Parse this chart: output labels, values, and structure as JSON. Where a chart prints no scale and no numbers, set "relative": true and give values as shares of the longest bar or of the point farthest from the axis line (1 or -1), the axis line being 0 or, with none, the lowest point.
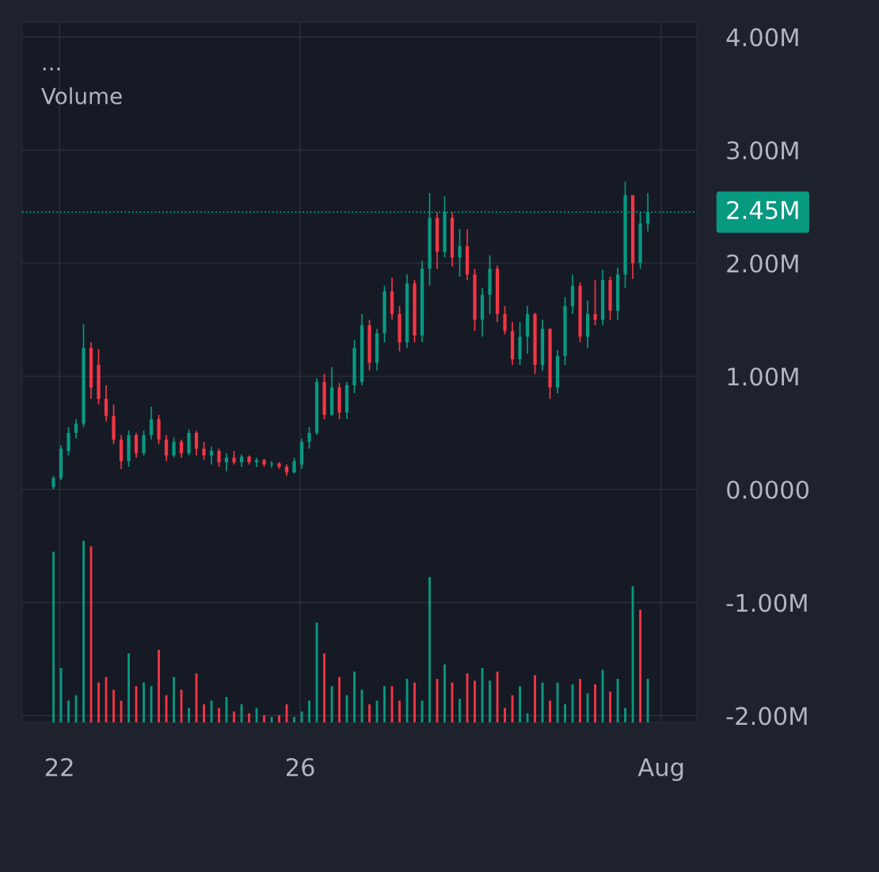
{
  "chart_data": [
    {
      "type": "candlestick",
      "annotations": [
        "...",
        "Volume"
      ],
      "x": [
        21.9,
        22.025,
        22.15,
        22.275,
        22.4,
        22.525,
        22.65,
        22.775,
        22.9,
        23.025,
        23.15,
        23.275,
        23.4,
        23.525,
        23.65,
        23.775,
        23.9,
        24.025,
        24.15,
        24.275,
        24.4,
        24.525,
        24.65,
        24.775,
        24.9,
        25.025,
        25.15,
        25.275,
        25.4,
        25.525,
        25.65,
        25.775,
        25.9,
        26.025,
        26.15,
        26.275,
        26.4,
        26.525,
        26.65,
        26.775,
        26.9,
        27.025,
        27.15,
        27.275,
        27.4,
        27.525,
        27.65,
        27.775,
        27.9,
        28.025,
        28.15,
        28.275,
        28.4,
        28.525,
        28.65,
        28.775,
        28.9,
        29.025,
        29.15,
        29.275,
        29.4,
        29.525,
        29.65,
        29.775,
        29.9,
        30.025,
        30.15,
        30.275,
        30.4,
        30.525,
        30.65,
        30.775,
        30.9,
        31.025,
        31.15,
        31.275,
        31.4,
        31.525,
        31.65,
        31.775
      ],
      "ohlc": [
        [
          0.02,
          0.12,
          0.0,
          0.1
        ],
        [
          0.1,
          0.39,
          0.08,
          0.36
        ],
        [
          0.34,
          0.55,
          0.3,
          0.5
        ],
        [
          0.5,
          0.62,
          0.45,
          0.58
        ],
        [
          0.58,
          1.46,
          0.55,
          1.25
        ],
        [
          1.25,
          1.3,
          0.8,
          0.9
        ],
        [
          1.1,
          1.24,
          0.75,
          0.8
        ],
        [
          0.8,
          0.92,
          0.6,
          0.65
        ],
        [
          0.65,
          0.75,
          0.4,
          0.44
        ],
        [
          0.44,
          0.48,
          0.18,
          0.25
        ],
        [
          0.25,
          0.52,
          0.2,
          0.48
        ],
        [
          0.48,
          0.5,
          0.28,
          0.32
        ],
        [
          0.32,
          0.52,
          0.3,
          0.48
        ],
        [
          0.48,
          0.73,
          0.44,
          0.62
        ],
        [
          0.62,
          0.66,
          0.4,
          0.44
        ],
        [
          0.44,
          0.48,
          0.25,
          0.3
        ],
        [
          0.3,
          0.46,
          0.28,
          0.42
        ],
        [
          0.42,
          0.44,
          0.28,
          0.32
        ],
        [
          0.32,
          0.53,
          0.3,
          0.5
        ],
        [
          0.5,
          0.52,
          0.3,
          0.36
        ],
        [
          0.36,
          0.42,
          0.26,
          0.3
        ],
        [
          0.3,
          0.38,
          0.22,
          0.34
        ],
        [
          0.34,
          0.36,
          0.2,
          0.24
        ],
        [
          0.24,
          0.32,
          0.16,
          0.28
        ],
        [
          0.28,
          0.34,
          0.22,
          0.24
        ],
        [
          0.24,
          0.31,
          0.2,
          0.29
        ],
        [
          0.29,
          0.3,
          0.22,
          0.24
        ],
        [
          0.24,
          0.28,
          0.2,
          0.26
        ],
        [
          0.26,
          0.27,
          0.2,
          0.22
        ],
        [
          0.22,
          0.25,
          0.19,
          0.23
        ],
        [
          0.23,
          0.24,
          0.18,
          0.2
        ],
        [
          0.2,
          0.22,
          0.12,
          0.15
        ],
        [
          0.15,
          0.28,
          0.14,
          0.25
        ],
        [
          0.22,
          0.45,
          0.18,
          0.42
        ],
        [
          0.42,
          0.55,
          0.36,
          0.5
        ],
        [
          0.5,
          0.98,
          0.48,
          0.95
        ],
        [
          0.95,
          1.02,
          0.62,
          0.66
        ],
        [
          0.66,
          1.08,
          0.65,
          0.9
        ],
        [
          0.9,
          0.94,
          0.62,
          0.68
        ],
        [
          0.68,
          0.95,
          0.62,
          0.92
        ],
        [
          0.92,
          1.32,
          0.85,
          1.25
        ],
        [
          0.95,
          1.55,
          0.92,
          1.45
        ],
        [
          1.45,
          1.5,
          1.05,
          1.12
        ],
        [
          1.12,
          1.42,
          1.05,
          1.38
        ],
        [
          1.38,
          1.8,
          1.3,
          1.75
        ],
        [
          1.75,
          1.87,
          1.5,
          1.55
        ],
        [
          1.55,
          1.62,
          1.22,
          1.3
        ],
        [
          1.3,
          1.9,
          1.25,
          1.82
        ],
        [
          1.82,
          1.85,
          1.3,
          1.36
        ],
        [
          1.36,
          2.02,
          1.3,
          1.95
        ],
        [
          1.95,
          2.62,
          1.8,
          2.4
        ],
        [
          2.4,
          2.45,
          1.95,
          2.1
        ],
        [
          2.1,
          2.59,
          2.05,
          2.45
        ],
        [
          2.4,
          2.45,
          1.97,
          2.05
        ],
        [
          2.05,
          2.3,
          1.88,
          2.15
        ],
        [
          2.15,
          2.3,
          1.85,
          1.9
        ],
        [
          1.9,
          1.95,
          1.4,
          1.5
        ],
        [
          1.5,
          1.78,
          1.35,
          1.72
        ],
        [
          1.72,
          2.07,
          1.55,
          1.95
        ],
        [
          1.95,
          1.98,
          1.48,
          1.55
        ],
        [
          1.55,
          1.62,
          1.37,
          1.4
        ],
        [
          1.4,
          1.48,
          1.1,
          1.15
        ],
        [
          1.15,
          1.48,
          1.1,
          1.35
        ],
        [
          1.35,
          1.62,
          1.2,
          1.55
        ],
        [
          1.55,
          1.56,
          1.02,
          1.1
        ],
        [
          1.1,
          1.5,
          1.05,
          1.42
        ],
        [
          1.42,
          1.42,
          0.8,
          0.9
        ],
        [
          0.9,
          1.23,
          0.85,
          1.18
        ],
        [
          1.18,
          1.7,
          1.1,
          1.62
        ],
        [
          1.62,
          1.9,
          1.55,
          1.8
        ],
        [
          1.8,
          1.83,
          1.3,
          1.35
        ],
        [
          1.35,
          1.67,
          1.25,
          1.55
        ],
        [
          1.55,
          1.85,
          1.45,
          1.5
        ],
        [
          1.5,
          1.94,
          1.45,
          1.85
        ],
        [
          1.85,
          1.88,
          1.5,
          1.58
        ],
        [
          1.58,
          1.96,
          1.5,
          1.9
        ],
        [
          1.9,
          2.72,
          1.78,
          2.6
        ],
        [
          2.6,
          2.6,
          1.86,
          2.0
        ],
        [
          2.0,
          2.45,
          1.95,
          2.35
        ],
        [
          2.35,
          2.62,
          2.28,
          2.45
        ]
      ],
      "colors": [
        "#089981",
        "#089981",
        "#089981",
        "#089981",
        "#089981",
        "#f23645",
        "#f23645",
        "#f23645",
        "#f23645",
        "#f23645",
        "#089981",
        "#f23645",
        "#089981",
        "#089981",
        "#f23645",
        "#f23645",
        "#089981",
        "#f23645",
        "#089981",
        "#f23645",
        "#f23645",
        "#089981",
        "#f23645",
        "#089981",
        "#f23645",
        "#089981",
        "#f23645",
        "#089981",
        "#f23645",
        "#089981",
        "#f23645",
        "#f23645",
        "#089981",
        "#089981",
        "#089981",
        "#089981",
        "#f23645",
        "#089981",
        "#f23645",
        "#089981",
        "#089981",
        "#089981",
        "#f23645",
        "#089981",
        "#089981",
        "#f23645",
        "#f23645",
        "#089981",
        "#f23645",
        "#089981",
        "#089981",
        "#f23645",
        "#089981",
        "#f23645",
        "#089981",
        "#f23645",
        "#f23645",
        "#089981",
        "#089981",
        "#f23645",
        "#f23645",
        "#f23645",
        "#089981",
        "#089981",
        "#f23645",
        "#089981",
        "#f23645",
        "#089981",
        "#089981",
        "#089981",
        "#f23645",
        "#089981",
        "#f23645",
        "#089981",
        "#f23645",
        "#089981",
        "#089981",
        "#f23645",
        "#089981",
        "#089981"
      ],
      "xlim": [
        21.38,
        32.59
      ],
      "xticks": [
        22,
        26,
        {
          "value": 32,
          "label": "Aug"
        }
      ],
      "ylim": [
        -2.06,
        4.13
      ],
      "yticks": [
        {
          "value": -2,
          "label": "-2.00M"
        },
        {
          "value": -1,
          "label": "-1.00M"
        },
        {
          "value": 0,
          "label": "0.0000"
        },
        {
          "value": 1,
          "label": "1.00M"
        },
        {
          "value": 2,
          "label": "2.00M"
        },
        {
          "value": 3,
          "label": "3.00M"
        },
        {
          "value": 4,
          "label": "4.00M"
        }
      ],
      "grid": true,
      "ref_lines": [
        {
          "axis": "y",
          "value": 2.45,
          "label": "2.45M",
          "color": "#089981",
          "line_style": "dotted"
        }
      ]
    },
    {
      "type": "bar",
      "relative": true,
      "x": [
        21.9,
        22.025,
        22.15,
        22.275,
        22.4,
        22.525,
        22.65,
        22.775,
        22.9,
        23.025,
        23.15,
        23.275,
        23.4,
        23.525,
        23.65,
        23.775,
        23.9,
        24.025,
        24.15,
        24.275,
        24.4,
        24.525,
        24.65,
        24.775,
        24.9,
        25.025,
        25.15,
        25.275,
        25.4,
        25.525,
        25.65,
        25.775,
        25.9,
        26.025,
        26.15,
        26.275,
        26.4,
        26.525,
        26.65,
        26.775,
        26.9,
        27.025,
        27.15,
        27.275,
        27.4,
        27.525,
        27.65,
        27.775,
        27.9,
        28.025,
        28.15,
        28.275,
        28.4,
        28.525,
        28.65,
        28.775,
        28.9,
        29.025,
        29.15,
        29.275,
        29.4,
        29.525,
        29.65,
        29.775,
        29.9,
        30.025,
        30.15,
        30.275,
        30.4,
        30.525,
        30.65,
        30.775,
        30.9,
        31.025,
        31.15,
        31.275,
        31.4,
        31.525,
        31.65,
        31.775
      ],
      "values": [
        0.94,
        0.3,
        0.12,
        0.15,
        1.0,
        0.97,
        0.22,
        0.25,
        0.18,
        0.12,
        0.38,
        0.2,
        0.22,
        0.2,
        0.4,
        0.15,
        0.25,
        0.18,
        0.08,
        0.27,
        0.1,
        0.12,
        0.08,
        0.14,
        0.06,
        0.1,
        0.05,
        0.08,
        0.04,
        0.03,
        0.04,
        0.1,
        0.03,
        0.06,
        0.12,
        0.55,
        0.38,
        0.2,
        0.25,
        0.15,
        0.28,
        0.18,
        0.1,
        0.12,
        0.2,
        0.2,
        0.12,
        0.24,
        0.22,
        0.12,
        0.8,
        0.24,
        0.32,
        0.22,
        0.13,
        0.27,
        0.23,
        0.3,
        0.23,
        0.28,
        0.08,
        0.15,
        0.2,
        0.05,
        0.26,
        0.22,
        0.12,
        0.22,
        0.1,
        0.21,
        0.24,
        0.16,
        0.21,
        0.29,
        0.17,
        0.24,
        0.08,
        0.75,
        0.62,
        0.24
      ],
      "colors": [
        "#089981",
        "#089981",
        "#089981",
        "#089981",
        "#089981",
        "#f23645",
        "#f23645",
        "#f23645",
        "#f23645",
        "#f23645",
        "#089981",
        "#f23645",
        "#089981",
        "#089981",
        "#f23645",
        "#f23645",
        "#089981",
        "#f23645",
        "#089981",
        "#f23645",
        "#f23645",
        "#089981",
        "#f23645",
        "#089981",
        "#f23645",
        "#089981",
        "#f23645",
        "#089981",
        "#f23645",
        "#089981",
        "#f23645",
        "#f23645",
        "#089981",
        "#089981",
        "#089981",
        "#089981",
        "#f23645",
        "#089981",
        "#f23645",
        "#089981",
        "#089981",
        "#089981",
        "#f23645",
        "#089981",
        "#089981",
        "#f23645",
        "#f23645",
        "#089981",
        "#f23645",
        "#089981",
        "#089981",
        "#f23645",
        "#089981",
        "#f23645",
        "#089981",
        "#f23645",
        "#f23645",
        "#089981",
        "#089981",
        "#f23645",
        "#f23645",
        "#f23645",
        "#089981",
        "#089981",
        "#f23645",
        "#089981",
        "#f23645",
        "#089981",
        "#089981",
        "#089981",
        "#f23645",
        "#089981",
        "#f23645",
        "#089981",
        "#f23645",
        "#089981",
        "#089981",
        "#089981",
        "#f23645",
        "#089981"
      ],
      "xlim": [
        21.38,
        32.59
      ]
    }
  ]
}
